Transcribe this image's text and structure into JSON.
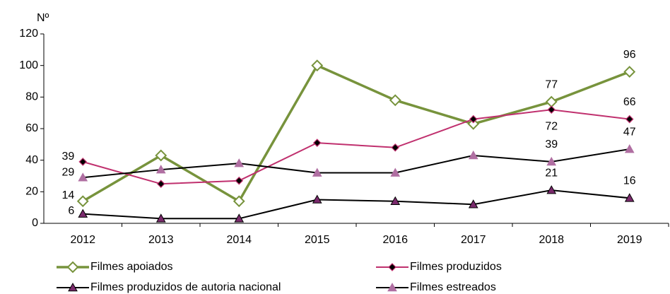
{
  "chart_data": {
    "type": "line",
    "y_axis_label": "Nº",
    "categories": [
      "2012",
      "2013",
      "2014",
      "2015",
      "2016",
      "2017",
      "2018",
      "2019"
    ],
    "ylim": [
      0,
      120
    ],
    "yticks": [
      0,
      20,
      40,
      60,
      80,
      100,
      120
    ],
    "grid": false,
    "legend": "bottom",
    "series": [
      {
        "name": "Filmes apoiados",
        "color": "#77933c",
        "marker": "diamond-open",
        "marker_color": "#77933c",
        "values": [
          14,
          43,
          14,
          100,
          78,
          63,
          77,
          96
        ],
        "value_labels": [
          14,
          null,
          null,
          null,
          null,
          null,
          77,
          96
        ]
      },
      {
        "name": "Filmes produzidos",
        "color": "#c0306e",
        "marker": "diamond",
        "marker_color": "#000000",
        "values": [
          39,
          25,
          27,
          51,
          48,
          66,
          72,
          66
        ],
        "value_labels": [
          39,
          null,
          null,
          null,
          null,
          null,
          72,
          66
        ]
      },
      {
        "name": "Filmes produzidos de autoria nacional",
        "color": "#000000",
        "marker": "triangle",
        "marker_color": "#7a2a6c",
        "values": [
          6,
          3,
          3,
          15,
          14,
          12,
          21,
          16
        ],
        "value_labels": [
          6,
          null,
          null,
          null,
          null,
          null,
          21,
          16
        ]
      },
      {
        "name": "Filmes estreados",
        "color": "#000000",
        "marker": "triangle",
        "marker_color": "#b06fa2",
        "values": [
          29,
          34,
          38,
          32,
          32,
          43,
          39,
          47
        ],
        "value_labels": [
          29,
          null,
          null,
          null,
          null,
          null,
          39,
          47
        ]
      }
    ]
  }
}
